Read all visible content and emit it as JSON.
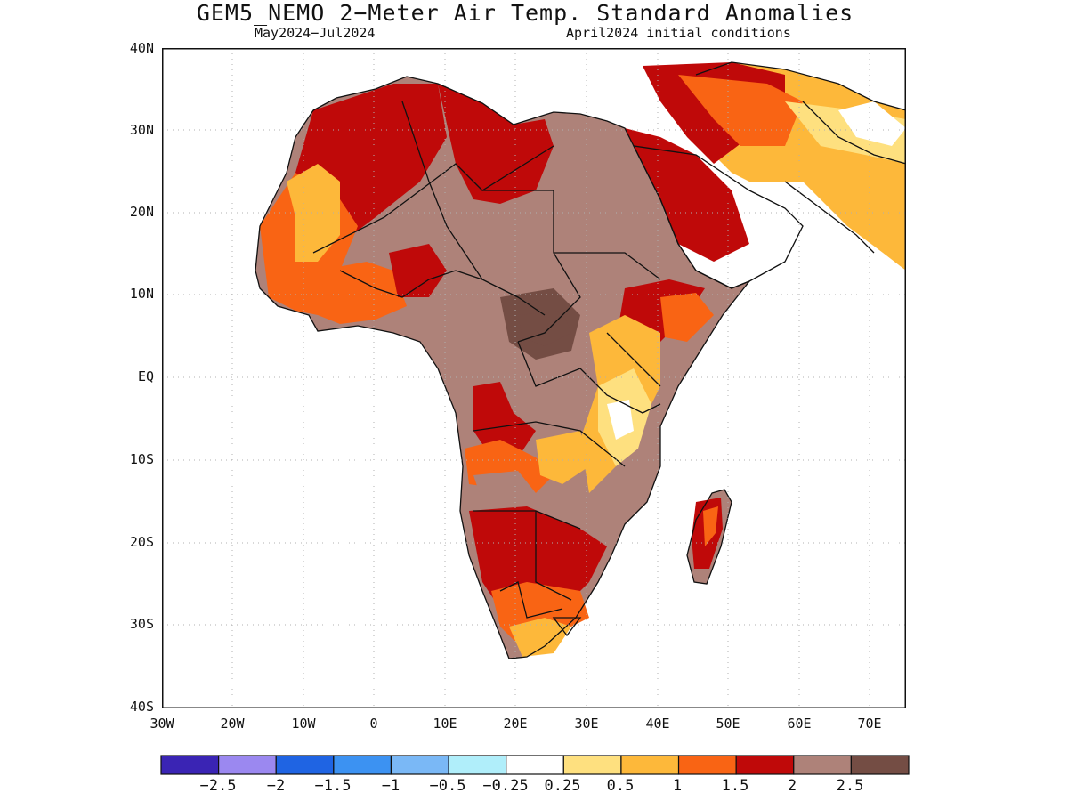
{
  "title": "GEM5_NEMO 2−Meter Air Temp. Standard Anomalies",
  "subtitle_left": "May2024−Jul2024",
  "subtitle_right": "April2024 initial conditions",
  "y_axis_labels": [
    "40N",
    "30N",
    "20N",
    "10N",
    "EQ",
    "10S",
    "20S",
    "30S",
    "40S"
  ],
  "x_axis_labels": [
    "30W",
    "20W",
    "10W",
    "0",
    "10E",
    "20E",
    "30E",
    "40E",
    "50E",
    "60E",
    "70E"
  ],
  "map_extent": {
    "lon": [
      -30,
      75
    ],
    "lat": [
      -40,
      40
    ]
  },
  "colorbar": {
    "colors": [
      "#3a24b4",
      "#9b88f0",
      "#1f64e3",
      "#3c92f2",
      "#7ab8f6",
      "#b0eefa",
      "#ffffff",
      "#fee07f",
      "#fdb83a",
      "#f96414",
      "#bf0909",
      "#ae8279",
      "#744d44"
    ],
    "labels": [
      "−2.5",
      "−2",
      "−1.5",
      "−1",
      "−0.5",
      "−0.25",
      "0.25",
      "0.5",
      "1",
      "1.5",
      "2",
      "2.5"
    ]
  },
  "colors": {
    "land": "#ae8279",
    "ocean": "#ffffff",
    "grid": "#b0b0b0",
    "border": "#111111"
  }
}
